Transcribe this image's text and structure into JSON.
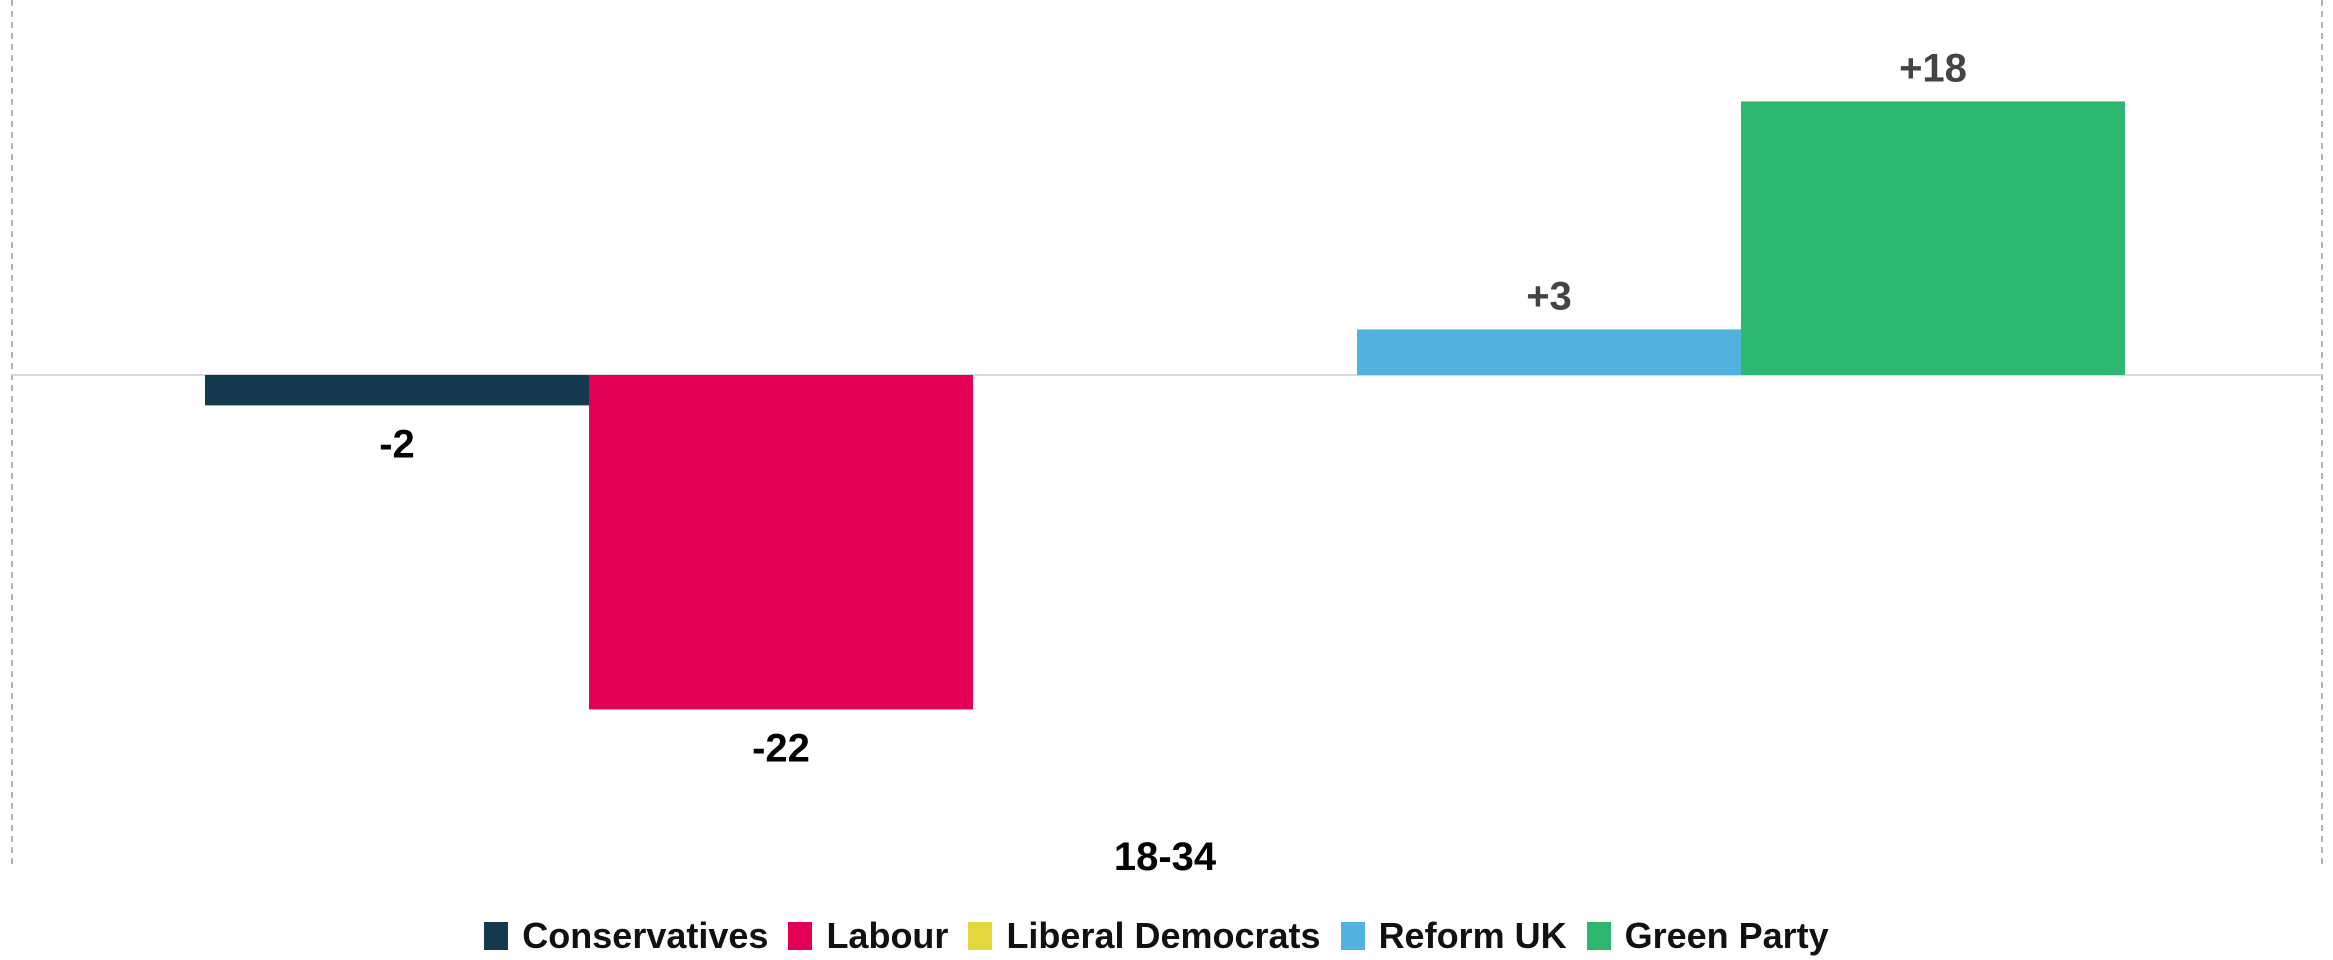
{
  "chart_data": {
    "type": "bar",
    "title": "",
    "xlabel": "",
    "ylabel": "",
    "categories": [
      "18-34"
    ],
    "ylim": [
      -24,
      19.5
    ],
    "grid": false,
    "legend_position": "bottom",
    "series": [
      {
        "name": "Conservatives",
        "values": [
          -2
        ],
        "label": "-2",
        "color": "#15394f",
        "label_color": "#000000"
      },
      {
        "name": "Labour",
        "values": [
          -22
        ],
        "label": "-22",
        "color": "#e40054",
        "label_color": "#000000"
      },
      {
        "name": "Liberal Democrats",
        "values": [
          0
        ],
        "label": "",
        "color": "#e4d63f",
        "label_color": "#000000"
      },
      {
        "name": "Reform UK",
        "values": [
          3
        ],
        "label": "+3",
        "color": "#52b2df",
        "label_color": "#444444"
      },
      {
        "name": "Green Party",
        "values": [
          18
        ],
        "label": "+18",
        "color": "#2eb771",
        "label_color": "#444444"
      }
    ]
  }
}
